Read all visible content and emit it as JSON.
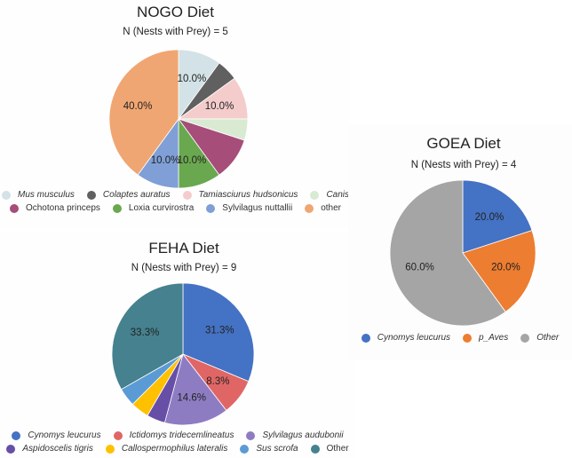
{
  "chart_data": [
    {
      "type": "pie",
      "id": "nogo",
      "title": "NOGO Diet",
      "subtitle": "N (Nests with Prey) = 5",
      "start_angle_deg": 0,
      "direction": "clockwise",
      "legend_position": "bottom",
      "slices": [
        {
          "label": "Mus musculus",
          "value": 10.0,
          "color": "#d3e2e6",
          "data_label": "10.0%",
          "italic": true
        },
        {
          "label": "Colaptes auratus",
          "value": 5.0,
          "color": "#606060",
          "data_label": "",
          "italic": true
        },
        {
          "label": "Tamiasciurus hudsonicus",
          "value": 10.0,
          "color": "#f4cccc",
          "data_label": "10.0%",
          "italic": true
        },
        {
          "label": "Canis",
          "value": 5.0,
          "color": "#d9ead3",
          "data_label": "",
          "italic": true
        },
        {
          "label": "Ochotona princeps",
          "value": 10.0,
          "color": "#a64d79",
          "data_label": "",
          "italic": false
        },
        {
          "label": "Loxia curvirostra",
          "value": 10.0,
          "color": "#6aa84f",
          "data_label": "10.0%",
          "italic": false
        },
        {
          "label": "Sylvilagus nuttallii",
          "value": 10.0,
          "color": "#7f9fd6",
          "data_label": "10.0%",
          "italic": false
        },
        {
          "label": "other",
          "value": 40.0,
          "color": "#f0a672",
          "data_label": "40.0%",
          "italic": false
        }
      ],
      "legend_rows": [
        [
          0,
          1,
          2,
          3
        ],
        [
          4,
          5,
          6,
          7
        ]
      ]
    },
    {
      "type": "pie",
      "id": "feha",
      "title": "FEHA Diet",
      "subtitle": "N (Nests with Prey) = 9",
      "start_angle_deg": 0,
      "direction": "clockwise",
      "legend_position": "bottom",
      "slices": [
        {
          "label": "Cynomys leucurus",
          "value": 31.3,
          "color": "#4472c4",
          "data_label": "31.3%",
          "italic": true
        },
        {
          "label": "Ictidomys tridecemlineatus",
          "value": 8.3,
          "color": "#e06666",
          "data_label": "8.3%",
          "italic": true
        },
        {
          "label": "Sylvilagus audubonii",
          "value": 14.6,
          "color": "#8e7cc3",
          "data_label": "14.6%",
          "italic": true
        },
        {
          "label": "Aspidoscelis tigris",
          "value": 4.2,
          "color": "#674ea7",
          "data_label": "",
          "italic": true
        },
        {
          "label": "Callospermophilus lateralis",
          "value": 4.2,
          "color": "#ffc000",
          "data_label": "",
          "italic": true
        },
        {
          "label": "Sus scrofa",
          "value": 4.2,
          "color": "#5b9bd5",
          "data_label": "",
          "italic": true
        },
        {
          "label": "Other",
          "value": 33.3,
          "color": "#45818e",
          "data_label": "33.3%",
          "italic": false
        }
      ],
      "legend_rows": [
        [
          0,
          1,
          2
        ],
        [
          3,
          4,
          5,
          6
        ]
      ]
    },
    {
      "type": "pie",
      "id": "goea",
      "title": "GOEA Diet",
      "subtitle": "N (Nests with Prey) = 4",
      "start_angle_deg": 0,
      "direction": "clockwise",
      "legend_position": "bottom",
      "slices": [
        {
          "label": "Cynomys leucurus",
          "value": 20.0,
          "color": "#4472c4",
          "data_label": "20.0%",
          "italic": true
        },
        {
          "label": "p_Aves",
          "value": 20.0,
          "color": "#ed7d31",
          "data_label": "20.0%",
          "italic": true
        },
        {
          "label": "Other",
          "value": 60.0,
          "color": "#a5a5a5",
          "data_label": "60.0%",
          "italic": true
        }
      ],
      "legend_rows": [
        [
          0,
          1,
          2
        ]
      ]
    }
  ]
}
